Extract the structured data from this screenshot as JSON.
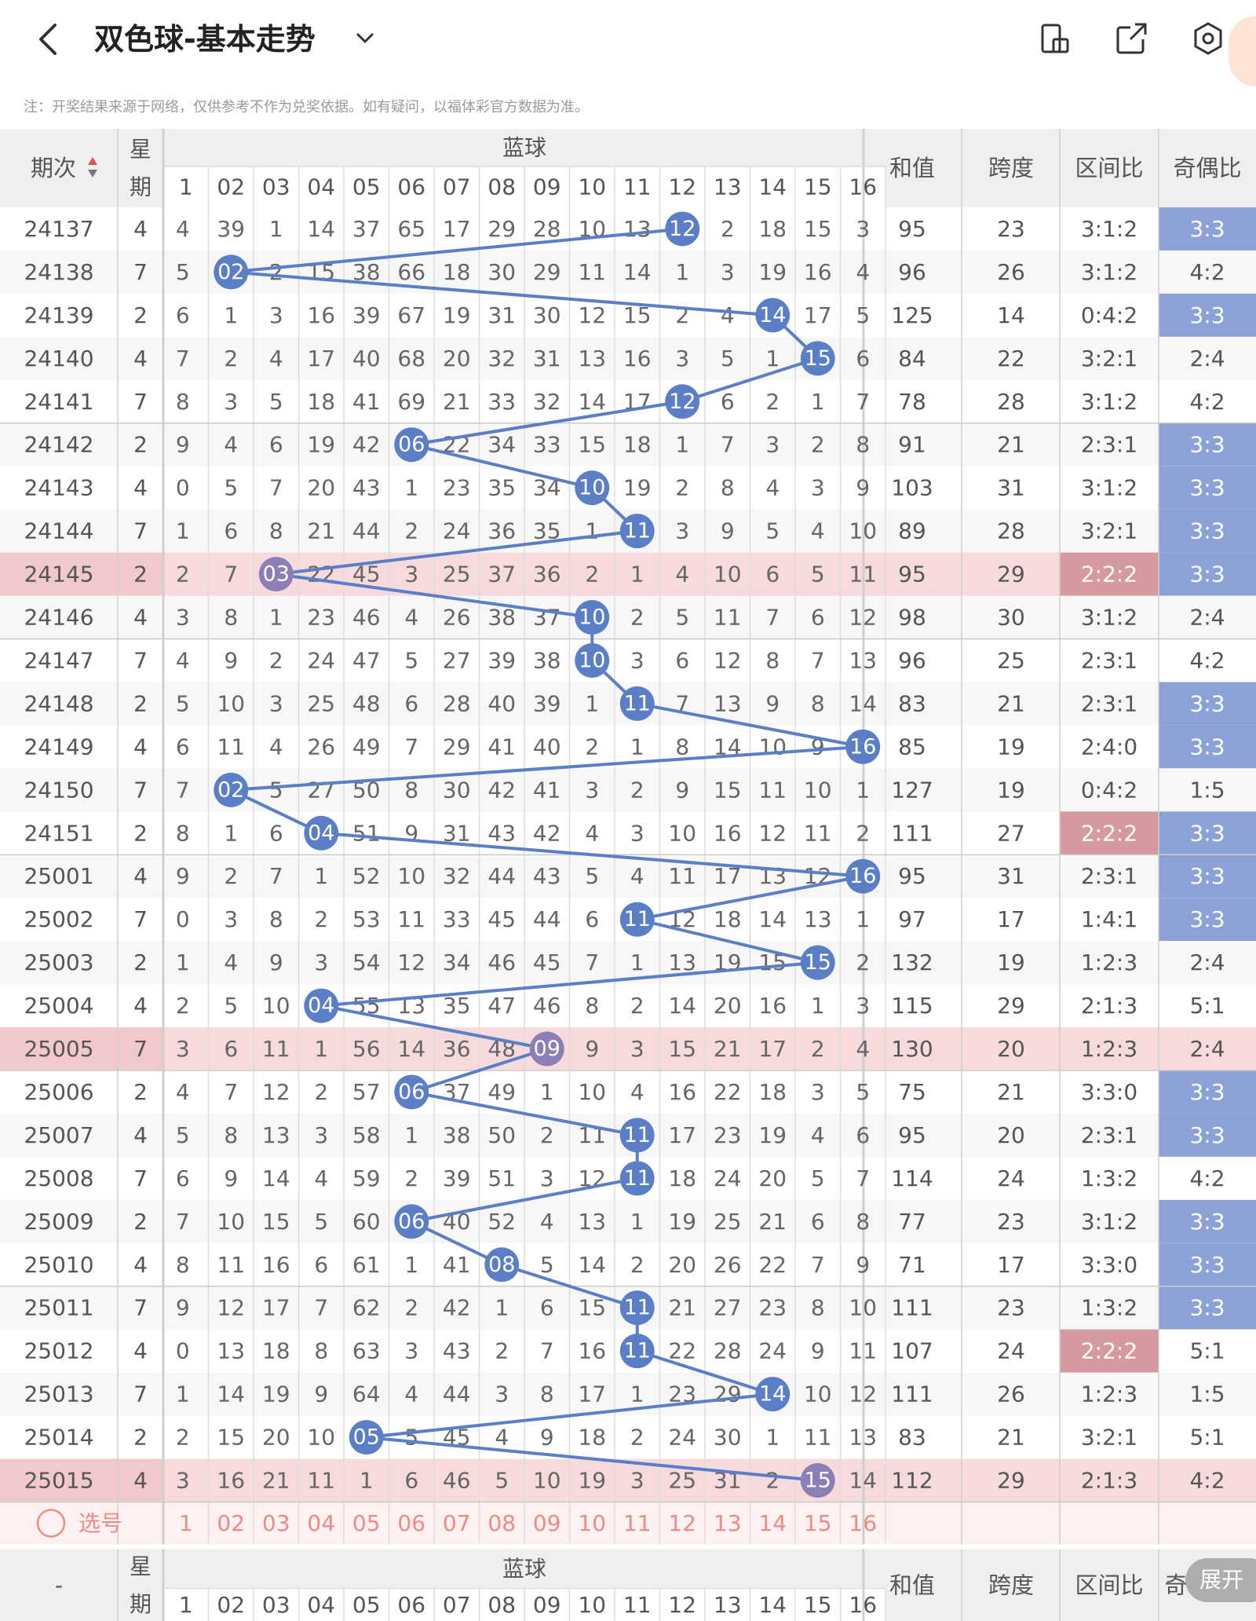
{
  "header": {
    "title": "双色球-基本走势",
    "note": "注：开奖结果来源于网络，仅供参考不作为兑奖依据。如有疑问，以福体彩官方数据为准。",
    "back_icon": "chevron-left-icon",
    "dropdown_icon": "chevron-down-icon",
    "icons": [
      "phone-icon",
      "share-icon",
      "settings-icon"
    ]
  },
  "table": {
    "headers": {
      "period": "期次",
      "week": "星期",
      "blue": "蓝球",
      "sum": "和值",
      "span": "跨度",
      "range_ratio": "区间比",
      "odd_even": "奇偶比"
    },
    "blue_numbers": [
      "1",
      "02",
      "03",
      "04",
      "05",
      "06",
      "07",
      "08",
      "09",
      "10",
      "11",
      "12",
      "13",
      "14",
      "15",
      "16"
    ],
    "rows": [
      {
        "p": "24137",
        "w": "4",
        "c": [
          "4",
          "39",
          "1",
          "14",
          "37",
          "65",
          "17",
          "29",
          "28",
          "10",
          "13",
          "12",
          "2",
          "18",
          "15",
          "3"
        ],
        "b": 12,
        "s": "95",
        "sp": "23",
        "r": "3:1:2",
        "oe": "3:3",
        "oeh": true,
        "rh": false,
        "hl": false
      },
      {
        "p": "24138",
        "w": "7",
        "c": [
          "5",
          "02",
          "2",
          "15",
          "38",
          "66",
          "18",
          "30",
          "29",
          "11",
          "14",
          "1",
          "3",
          "19",
          "16",
          "4"
        ],
        "b": 2,
        "s": "96",
        "sp": "26",
        "r": "3:1:2",
        "oe": "4:2",
        "oeh": false,
        "rh": false,
        "hl": false
      },
      {
        "p": "24139",
        "w": "2",
        "c": [
          "6",
          "1",
          "3",
          "16",
          "39",
          "67",
          "19",
          "31",
          "30",
          "12",
          "15",
          "2",
          "4",
          "14",
          "17",
          "5"
        ],
        "b": 14,
        "s": "125",
        "sp": "14",
        "r": "0:4:2",
        "oe": "3:3",
        "oeh": true,
        "rh": false,
        "hl": false
      },
      {
        "p": "24140",
        "w": "4",
        "c": [
          "7",
          "2",
          "4",
          "17",
          "40",
          "68",
          "20",
          "32",
          "31",
          "13",
          "16",
          "3",
          "5",
          "1",
          "15",
          "6"
        ],
        "b": 15,
        "s": "84",
        "sp": "22",
        "r": "3:2:1",
        "oe": "2:4",
        "oeh": false,
        "rh": false,
        "hl": false
      },
      {
        "p": "24141",
        "w": "7",
        "c": [
          "8",
          "3",
          "5",
          "18",
          "41",
          "69",
          "21",
          "33",
          "32",
          "14",
          "17",
          "12",
          "6",
          "2",
          "1",
          "7"
        ],
        "b": 12,
        "s": "78",
        "sp": "28",
        "r": "3:1:2",
        "oe": "4:2",
        "oeh": false,
        "rh": false,
        "hl": false
      },
      {
        "p": "24142",
        "w": "2",
        "c": [
          "9",
          "4",
          "6",
          "19",
          "42",
          "06",
          "22",
          "34",
          "33",
          "15",
          "18",
          "1",
          "7",
          "3",
          "2",
          "8"
        ],
        "b": 6,
        "s": "91",
        "sp": "21",
        "r": "2:3:1",
        "oe": "3:3",
        "oeh": true,
        "rh": false,
        "hl": false
      },
      {
        "p": "24143",
        "w": "4",
        "c": [
          "0",
          "5",
          "7",
          "20",
          "43",
          "1",
          "23",
          "35",
          "34",
          "10",
          "19",
          "2",
          "8",
          "4",
          "3",
          "9"
        ],
        "b": 10,
        "s": "103",
        "sp": "31",
        "r": "3:1:2",
        "oe": "3:3",
        "oeh": true,
        "rh": false,
        "hl": false
      },
      {
        "p": "24144",
        "w": "7",
        "c": [
          "1",
          "6",
          "8",
          "21",
          "44",
          "2",
          "24",
          "36",
          "35",
          "1",
          "11",
          "3",
          "9",
          "5",
          "4",
          "10"
        ],
        "b": 11,
        "s": "89",
        "sp": "28",
        "r": "3:2:1",
        "oe": "3:3",
        "oeh": true,
        "rh": false,
        "hl": false
      },
      {
        "p": "24145",
        "w": "2",
        "c": [
          "2",
          "7",
          "03",
          "22",
          "45",
          "3",
          "25",
          "37",
          "36",
          "2",
          "1",
          "4",
          "10",
          "6",
          "5",
          "11"
        ],
        "b": 3,
        "s": "95",
        "sp": "29",
        "r": "2:2:2",
        "oe": "3:3",
        "oeh": true,
        "rh": true,
        "hl": true
      },
      {
        "p": "24146",
        "w": "4",
        "c": [
          "3",
          "8",
          "1",
          "23",
          "46",
          "4",
          "26",
          "38",
          "37",
          "10",
          "2",
          "5",
          "11",
          "7",
          "6",
          "12"
        ],
        "b": 10,
        "s": "98",
        "sp": "30",
        "r": "3:1:2",
        "oe": "2:4",
        "oeh": false,
        "rh": false,
        "hl": false
      },
      {
        "p": "24147",
        "w": "7",
        "c": [
          "4",
          "9",
          "2",
          "24",
          "47",
          "5",
          "27",
          "39",
          "38",
          "10",
          "3",
          "6",
          "12",
          "8",
          "7",
          "13"
        ],
        "b": 10,
        "s": "96",
        "sp": "25",
        "r": "2:3:1",
        "oe": "4:2",
        "oeh": false,
        "rh": false,
        "hl": false
      },
      {
        "p": "24148",
        "w": "2",
        "c": [
          "5",
          "10",
          "3",
          "25",
          "48",
          "6",
          "28",
          "40",
          "39",
          "1",
          "11",
          "7",
          "13",
          "9",
          "8",
          "14"
        ],
        "b": 11,
        "s": "83",
        "sp": "21",
        "r": "2:3:1",
        "oe": "3:3",
        "oeh": true,
        "rh": false,
        "hl": false
      },
      {
        "p": "24149",
        "w": "4",
        "c": [
          "6",
          "11",
          "4",
          "26",
          "49",
          "7",
          "29",
          "41",
          "40",
          "2",
          "1",
          "8",
          "14",
          "10",
          "9",
          "16"
        ],
        "b": 16,
        "s": "85",
        "sp": "19",
        "r": "2:4:0",
        "oe": "3:3",
        "oeh": true,
        "rh": false,
        "hl": false
      },
      {
        "p": "24150",
        "w": "7",
        "c": [
          "7",
          "02",
          "5",
          "27",
          "50",
          "8",
          "30",
          "42",
          "41",
          "3",
          "2",
          "9",
          "15",
          "11",
          "10",
          "1"
        ],
        "b": 2,
        "s": "127",
        "sp": "19",
        "r": "0:4:2",
        "oe": "1:5",
        "oeh": false,
        "rh": false,
        "hl": false
      },
      {
        "p": "24151",
        "w": "2",
        "c": [
          "8",
          "1",
          "6",
          "04",
          "51",
          "9",
          "31",
          "43",
          "42",
          "4",
          "3",
          "10",
          "16",
          "12",
          "11",
          "2"
        ],
        "b": 4,
        "s": "111",
        "sp": "27",
        "r": "2:2:2",
        "oe": "3:3",
        "oeh": true,
        "rh": true,
        "hl": false
      },
      {
        "p": "25001",
        "w": "4",
        "c": [
          "9",
          "2",
          "7",
          "1",
          "52",
          "10",
          "32",
          "44",
          "43",
          "5",
          "4",
          "11",
          "17",
          "13",
          "12",
          "16"
        ],
        "b": 16,
        "s": "95",
        "sp": "31",
        "r": "2:3:1",
        "oe": "3:3",
        "oeh": true,
        "rh": false,
        "hl": false
      },
      {
        "p": "25002",
        "w": "7",
        "c": [
          "0",
          "3",
          "8",
          "2",
          "53",
          "11",
          "33",
          "45",
          "44",
          "6",
          "11",
          "12",
          "18",
          "14",
          "13",
          "1"
        ],
        "b": 11,
        "s": "97",
        "sp": "17",
        "r": "1:4:1",
        "oe": "3:3",
        "oeh": true,
        "rh": false,
        "hl": false
      },
      {
        "p": "25003",
        "w": "2",
        "c": [
          "1",
          "4",
          "9",
          "3",
          "54",
          "12",
          "34",
          "46",
          "45",
          "7",
          "1",
          "13",
          "19",
          "15",
          "15",
          "2"
        ],
        "b": 15,
        "s": "132",
        "sp": "19",
        "r": "1:2:3",
        "oe": "2:4",
        "oeh": false,
        "rh": false,
        "hl": false
      },
      {
        "p": "25004",
        "w": "4",
        "c": [
          "2",
          "5",
          "10",
          "04",
          "55",
          "13",
          "35",
          "47",
          "46",
          "8",
          "2",
          "14",
          "20",
          "16",
          "1",
          "3"
        ],
        "b": 4,
        "s": "115",
        "sp": "29",
        "r": "2:1:3",
        "oe": "5:1",
        "oeh": false,
        "rh": false,
        "hl": false
      },
      {
        "p": "25005",
        "w": "7",
        "c": [
          "3",
          "6",
          "11",
          "1",
          "56",
          "14",
          "36",
          "48",
          "09",
          "9",
          "3",
          "15",
          "21",
          "17",
          "2",
          "4"
        ],
        "b": 9,
        "s": "130",
        "sp": "20",
        "r": "1:2:3",
        "oe": "2:4",
        "oeh": false,
        "rh": false,
        "hl": true
      },
      {
        "p": "25006",
        "w": "2",
        "c": [
          "4",
          "7",
          "12",
          "2",
          "57",
          "06",
          "37",
          "49",
          "1",
          "10",
          "4",
          "16",
          "22",
          "18",
          "3",
          "5"
        ],
        "b": 6,
        "s": "75",
        "sp": "21",
        "r": "3:3:0",
        "oe": "3:3",
        "oeh": true,
        "rh": false,
        "hl": false
      },
      {
        "p": "25007",
        "w": "4",
        "c": [
          "5",
          "8",
          "13",
          "3",
          "58",
          "1",
          "38",
          "50",
          "2",
          "11",
          "11",
          "17",
          "23",
          "19",
          "4",
          "6"
        ],
        "b": 11,
        "s": "95",
        "sp": "20",
        "r": "2:3:1",
        "oe": "3:3",
        "oeh": true,
        "rh": false,
        "hl": false
      },
      {
        "p": "25008",
        "w": "7",
        "c": [
          "6",
          "9",
          "14",
          "4",
          "59",
          "2",
          "39",
          "51",
          "3",
          "12",
          "11",
          "18",
          "24",
          "20",
          "5",
          "7"
        ],
        "b": 11,
        "s": "114",
        "sp": "24",
        "r": "1:3:2",
        "oe": "4:2",
        "oeh": false,
        "rh": false,
        "hl": false
      },
      {
        "p": "25009",
        "w": "2",
        "c": [
          "7",
          "10",
          "15",
          "5",
          "60",
          "06",
          "40",
          "52",
          "4",
          "13",
          "1",
          "19",
          "25",
          "21",
          "6",
          "8"
        ],
        "b": 6,
        "s": "77",
        "sp": "23",
        "r": "3:1:2",
        "oe": "3:3",
        "oeh": true,
        "rh": false,
        "hl": false
      },
      {
        "p": "25010",
        "w": "4",
        "c": [
          "8",
          "11",
          "16",
          "6",
          "61",
          "1",
          "41",
          "08",
          "5",
          "14",
          "2",
          "20",
          "26",
          "22",
          "7",
          "9"
        ],
        "b": 8,
        "s": "71",
        "sp": "17",
        "r": "3:3:0",
        "oe": "3:3",
        "oeh": true,
        "rh": false,
        "hl": false
      },
      {
        "p": "25011",
        "w": "7",
        "c": [
          "9",
          "12",
          "17",
          "7",
          "62",
          "2",
          "42",
          "1",
          "6",
          "15",
          "11",
          "21",
          "27",
          "23",
          "8",
          "10"
        ],
        "b": 11,
        "s": "111",
        "sp": "23",
        "r": "1:3:2",
        "oe": "3:3",
        "oeh": true,
        "rh": false,
        "hl": false
      },
      {
        "p": "25012",
        "w": "4",
        "c": [
          "0",
          "13",
          "18",
          "8",
          "63",
          "3",
          "43",
          "2",
          "7",
          "16",
          "11",
          "22",
          "28",
          "24",
          "9",
          "11"
        ],
        "b": 11,
        "s": "107",
        "sp": "24",
        "r": "2:2:2",
        "oe": "5:1",
        "oeh": false,
        "rh": true,
        "hl": false
      },
      {
        "p": "25013",
        "w": "7",
        "c": [
          "1",
          "14",
          "19",
          "9",
          "64",
          "4",
          "44",
          "3",
          "8",
          "17",
          "1",
          "23",
          "29",
          "14",
          "10",
          "12"
        ],
        "b": 14,
        "s": "111",
        "sp": "26",
        "r": "1:2:3",
        "oe": "1:5",
        "oeh": false,
        "rh": false,
        "hl": false
      },
      {
        "p": "25014",
        "w": "2",
        "c": [
          "2",
          "15",
          "20",
          "10",
          "05",
          "5",
          "45",
          "4",
          "9",
          "18",
          "2",
          "24",
          "30",
          "1",
          "11",
          "13"
        ],
        "b": 5,
        "s": "83",
        "sp": "21",
        "r": "3:2:1",
        "oe": "5:1",
        "oeh": false,
        "rh": false,
        "hl": false
      },
      {
        "p": "25015",
        "w": "4",
        "c": [
          "3",
          "16",
          "21",
          "11",
          "1",
          "6",
          "46",
          "5",
          "10",
          "19",
          "3",
          "25",
          "31",
          "2",
          "15",
          "14"
        ],
        "b": 15,
        "s": "112",
        "sp": "29",
        "r": "2:1:3",
        "oe": "4:2",
        "oeh": false,
        "rh": false,
        "hl": true
      }
    ],
    "select_label": "选号",
    "footer_period": "-",
    "footer_oe_partial": "奇",
    "expand_label": "展开"
  },
  "colors": {
    "ball_blue": "#5a7fc7",
    "ball_purple": "#8c7fb6",
    "oe_highlight": "#8ca2d6",
    "range_highlight": "#d49aa0",
    "row_highlight": "#f6dadc",
    "select_text": "#ef8a86"
  }
}
